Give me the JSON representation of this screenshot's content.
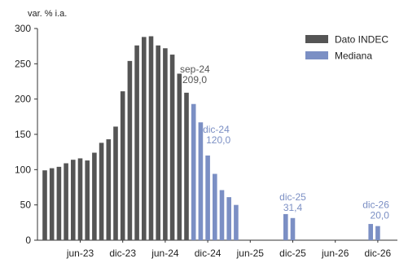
{
  "chart_data": {
    "type": "bar",
    "unit_label": "var. % i.a.",
    "ylim": [
      0,
      300
    ],
    "y_ticks": [
      0,
      50,
      100,
      150,
      200,
      250,
      300
    ],
    "x_tick_labels": [
      "jun-23",
      "dic-23",
      "jun-24",
      "dic-24",
      "jun-25",
      "dic-25",
      "jun-26",
      "dic-26"
    ],
    "grid": false,
    "legend_position": "top-right",
    "colors": {
      "Dato INDEC": "#555555",
      "Mediana": "#7b8fc4"
    },
    "categories": [
      "ene-23",
      "feb-23",
      "mar-23",
      "abr-23",
      "may-23",
      "jun-23",
      "jul-23",
      "ago-23",
      "sep-23",
      "oct-23",
      "nov-23",
      "dic-23",
      "ene-24",
      "feb-24",
      "mar-24",
      "abr-24",
      "may-24",
      "jun-24",
      "jul-24",
      "ago-24",
      "sep-24",
      "oct-24",
      "nov-24",
      "dic-24",
      "ene-25",
      "feb-25",
      "mar-25",
      "abr-25",
      "may-25",
      "jun-25",
      "jul-25",
      "ago-25",
      "sep-25",
      "oct-25",
      "nov-25",
      "dic-25",
      "ene-26",
      "feb-26",
      "mar-26",
      "abr-26",
      "may-26",
      "jun-26",
      "jul-26",
      "ago-26",
      "sep-26",
      "oct-26",
      "nov-26",
      "dic-26"
    ],
    "series": [
      {
        "name": "Dato INDEC",
        "values": [
          99,
          102,
          104,
          109,
          114,
          116,
          113,
          124,
          138,
          143,
          161,
          211,
          254,
          276,
          288,
          289,
          276,
          272,
          263,
          236,
          209,
          null,
          null,
          null,
          null,
          null,
          null,
          null,
          null,
          null,
          null,
          null,
          null,
          null,
          null,
          null,
          null,
          null,
          null,
          null,
          null,
          null,
          null,
          null,
          null,
          null,
          null,
          null
        ]
      },
      {
        "name": "Mediana",
        "values": [
          null,
          null,
          null,
          null,
          null,
          null,
          null,
          null,
          null,
          null,
          null,
          null,
          null,
          null,
          null,
          null,
          null,
          null,
          null,
          null,
          null,
          193,
          167,
          120,
          94,
          71,
          61,
          50,
          null,
          null,
          null,
          null,
          null,
          null,
          37,
          31.4,
          null,
          null,
          null,
          null,
          null,
          null,
          null,
          null,
          null,
          null,
          23,
          20
        ]
      }
    ],
    "annotations": [
      {
        "label": "sep-24",
        "value_text": "209,0",
        "category": "sep-24",
        "series": "Dato INDEC"
      },
      {
        "label": "dic-24",
        "value_text": "120,0",
        "category": "dic-24",
        "series": "Mediana"
      },
      {
        "label": "dic-25",
        "value_text": "31,4",
        "category": "dic-25",
        "series": "Mediana"
      },
      {
        "label": "dic-26",
        "value_text": "20,0",
        "category": "dic-26",
        "series": "Mediana"
      }
    ]
  }
}
